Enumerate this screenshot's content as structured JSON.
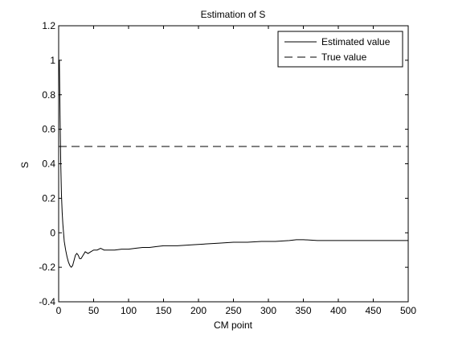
{
  "chart_data": {
    "type": "line",
    "title": "Estimation of S",
    "xlabel": "CM point",
    "ylabel": "S",
    "xlim": [
      0,
      500
    ],
    "ylim": [
      -0.4,
      1.2
    ],
    "grid": false,
    "xticks": [
      0,
      50,
      100,
      150,
      200,
      250,
      300,
      350,
      400,
      450,
      500
    ],
    "xtick_labels": [
      "0",
      "50",
      "100",
      "150",
      "200",
      "250",
      "300",
      "350",
      "400",
      "450",
      "500"
    ],
    "yticks": [
      -0.4,
      -0.2,
      0,
      0.2,
      0.4,
      0.6,
      0.8,
      1,
      1.2
    ],
    "ytick_labels": [
      "-0.4",
      "-0.2",
      "0",
      "0.2",
      "0.4",
      "0.6",
      "0.8",
      "1",
      "1.2"
    ],
    "legend_position": "top-right",
    "series": [
      {
        "name": "Estimated value",
        "style": "solid",
        "color": "#000000",
        "x": [
          1,
          2,
          3,
          4,
          5,
          6,
          7,
          8,
          10,
          12,
          14,
          16,
          18,
          20,
          22,
          24,
          26,
          28,
          30,
          32,
          35,
          38,
          42,
          46,
          50,
          55,
          60,
          65,
          70,
          80,
          90,
          100,
          110,
          120,
          130,
          140,
          150,
          170,
          190,
          210,
          230,
          250,
          270,
          290,
          310,
          330,
          340,
          350,
          370,
          390,
          410,
          430,
          450,
          470,
          490,
          500
        ],
        "values": [
          1.0,
          0.68,
          0.4,
          0.22,
          0.12,
          0.05,
          0.0,
          -0.05,
          -0.1,
          -0.14,
          -0.17,
          -0.19,
          -0.2,
          -0.19,
          -0.16,
          -0.13,
          -0.12,
          -0.13,
          -0.15,
          -0.15,
          -0.13,
          -0.11,
          -0.12,
          -0.11,
          -0.1,
          -0.1,
          -0.09,
          -0.1,
          -0.1,
          -0.1,
          -0.095,
          -0.095,
          -0.09,
          -0.085,
          -0.085,
          -0.08,
          -0.075,
          -0.075,
          -0.07,
          -0.065,
          -0.06,
          -0.055,
          -0.055,
          -0.05,
          -0.05,
          -0.045,
          -0.04,
          -0.04,
          -0.045,
          -0.045,
          -0.045,
          -0.045,
          -0.045,
          -0.045,
          -0.045,
          -0.045
        ]
      },
      {
        "name": "True value",
        "style": "dashed",
        "color": "#000000",
        "x": [
          0,
          500
        ],
        "values": [
          0.5,
          0.5
        ]
      }
    ]
  }
}
